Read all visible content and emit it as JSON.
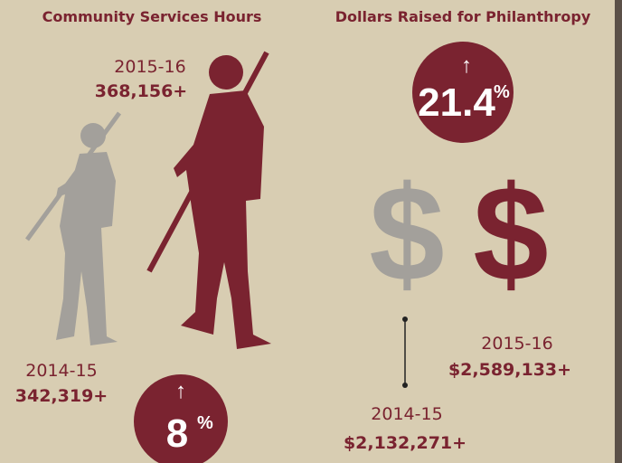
{
  "community": {
    "title": "Community Services Hours",
    "current": {
      "year": "2015-16",
      "value": "368,156+"
    },
    "previous": {
      "year": "2014-15",
      "value": "342,319+"
    },
    "change": {
      "arrow": "↑",
      "number": "8",
      "unit": "%"
    }
  },
  "philanthropy": {
    "title": "Dollars Raised for Philanthropy",
    "change": {
      "arrow": "↑",
      "number": "21.4",
      "unit": "%"
    },
    "icons": [
      "$",
      "$"
    ],
    "current": {
      "year": "2015-16",
      "value": "$2,589,133+"
    },
    "previous": {
      "year": "2014-15",
      "value": "$2,132,271+"
    }
  }
}
